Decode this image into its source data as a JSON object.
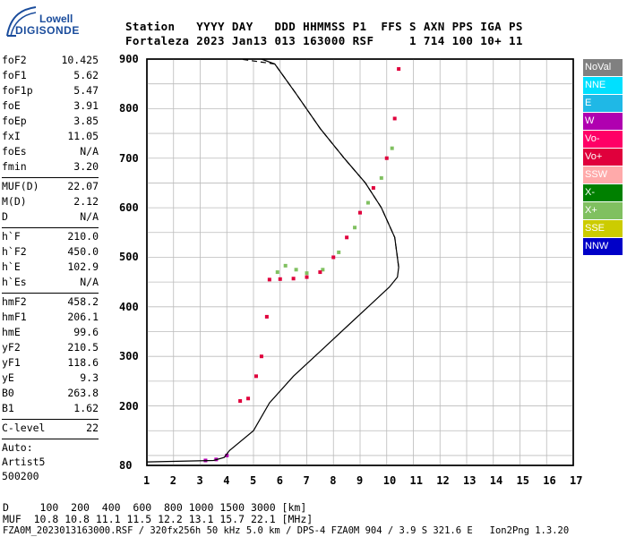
{
  "logo": {
    "line1": "Lowell",
    "line2": "DIGISONDE"
  },
  "header": {
    "labels": "Station   YYYY DAY   DDD HHMMSS P1  FFS S AXN PPS IGA PS",
    "values": "Fortaleza 2023 Jan13 013 163000 RSF     1 714 100 10+ 11"
  },
  "params_group1": [
    {
      "k": "foF2",
      "v": "10.425"
    },
    {
      "k": "foF1",
      "v": "5.62"
    },
    {
      "k": "foF1p",
      "v": "5.47"
    },
    {
      "k": "foE",
      "v": "3.91"
    },
    {
      "k": "foEp",
      "v": "3.85"
    },
    {
      "k": "fxI",
      "v": "11.05"
    },
    {
      "k": "foEs",
      "v": "N/A"
    },
    {
      "k": "fmin",
      "v": "3.20"
    }
  ],
  "params_group2": [
    {
      "k": "MUF(D)",
      "v": "22.07"
    },
    {
      "k": "M(D)",
      "v": "2.12"
    },
    {
      "k": "D",
      "v": "N/A"
    }
  ],
  "params_group3": [
    {
      "k": "h`F",
      "v": "210.0"
    },
    {
      "k": "h`F2",
      "v": "450.0"
    },
    {
      "k": "h`E",
      "v": "102.9"
    },
    {
      "k": "h`Es",
      "v": "N/A"
    }
  ],
  "params_group4": [
    {
      "k": "hmF2",
      "v": "458.2"
    },
    {
      "k": "hmF1",
      "v": "206.1"
    },
    {
      "k": "hmE",
      "v": "99.6"
    },
    {
      "k": "yF2",
      "v": "210.5"
    },
    {
      "k": "yF1",
      "v": "118.6"
    },
    {
      "k": "yE",
      "v": "9.3"
    },
    {
      "k": "B0",
      "v": "263.8"
    },
    {
      "k": "B1",
      "v": "1.62"
    }
  ],
  "c_level": {
    "k": "C-level",
    "v": "22"
  },
  "auto": [
    "Auto:",
    "Artist5",
    "500200"
  ],
  "legend": [
    {
      "label": "NoVal",
      "color": "#808080"
    },
    {
      "label": "NNE",
      "color": "#00e0ff"
    },
    {
      "label": "E",
      "color": "#1fb8e6"
    },
    {
      "label": "W",
      "color": "#b000b0"
    },
    {
      "label": "Vo-",
      "color": "#ff0066"
    },
    {
      "label": "Vo+",
      "color": "#e0003c"
    },
    {
      "label": "SSW",
      "color": "#ffaaaa"
    },
    {
      "label": "X-",
      "color": "#008000"
    },
    {
      "label": "X+",
      "color": "#80c060"
    },
    {
      "label": "SSE",
      "color": "#cccc00"
    },
    {
      "label": "NNW",
      "color": "#0000c8"
    }
  ],
  "footer": {
    "line1": "D     100  200  400  600  800 1000 1500 3000 [km]",
    "line2": "MUF  10.8 10.8 11.1 11.5 12.2 13.1 15.7 22.1 [MHz]",
    "line3": "FZA0M_2023013163000.RSF / 320fx256h 50 kHz 5.0 km / DPS-4 FZA0M 904 / 3.9 S 321.6 E   Ion2Png 1.3.20"
  },
  "chart_data": {
    "type": "scatter",
    "x_ticks": [
      "1",
      "2",
      "3",
      "4",
      "5",
      "6",
      "7",
      "8",
      "9",
      "10",
      "11",
      "12",
      "13",
      "14",
      "15",
      "16",
      "17"
    ],
    "y_ticks": [
      "900",
      "800",
      "700",
      "600",
      "500",
      "400",
      "300",
      "200",
      "80"
    ],
    "xlim": [
      1,
      17
    ],
    "ylim": [
      80,
      900
    ],
    "grid": true,
    "legend_position": "right",
    "trace_o": [
      [
        4.5,
        210
      ],
      [
        4.8,
        215
      ],
      [
        5.1,
        260
      ],
      [
        5.3,
        300
      ],
      [
        5.5,
        380
      ],
      [
        5.6,
        455
      ],
      [
        6.0,
        456
      ],
      [
        6.5,
        457
      ],
      [
        7.0,
        460
      ],
      [
        7.5,
        470
      ],
      [
        8.0,
        500
      ],
      [
        8.5,
        540
      ],
      [
        9.0,
        590
      ],
      [
        9.5,
        640
      ],
      [
        10.0,
        700
      ],
      [
        10.3,
        780
      ],
      [
        10.45,
        880
      ]
    ],
    "trace_x": [
      [
        5.9,
        470
      ],
      [
        6.2,
        483
      ],
      [
        6.6,
        475
      ],
      [
        7.0,
        468
      ],
      [
        7.6,
        475
      ],
      [
        8.2,
        510
      ],
      [
        8.8,
        560
      ],
      [
        9.3,
        610
      ],
      [
        9.8,
        660
      ],
      [
        10.2,
        720
      ]
    ],
    "trace_e": [
      [
        3.2,
        90
      ],
      [
        3.6,
        92
      ],
      [
        4.0,
        100
      ]
    ],
    "profile": [
      [
        1.0,
        87
      ],
      [
        3.5,
        90
      ],
      [
        3.9,
        96
      ],
      [
        4.1,
        110
      ],
      [
        5.0,
        150
      ],
      [
        5.6,
        206
      ],
      [
        6.5,
        260
      ],
      [
        7.5,
        310
      ],
      [
        8.5,
        360
      ],
      [
        9.5,
        410
      ],
      [
        10.1,
        440
      ],
      [
        10.4,
        460
      ],
      [
        10.45,
        480
      ]
    ],
    "profile_upper": [
      [
        10.45,
        480
      ],
      [
        10.3,
        540
      ],
      [
        9.8,
        600
      ],
      [
        9.2,
        650
      ],
      [
        8.4,
        700
      ],
      [
        7.5,
        760
      ],
      [
        6.6,
        830
      ],
      [
        5.8,
        890
      ],
      [
        5.3,
        900
      ]
    ],
    "extrapolated": [
      [
        10.45,
        480
      ],
      [
        10.3,
        540
      ],
      [
        9.8,
        600
      ],
      [
        9.2,
        650
      ],
      [
        8.4,
        700
      ],
      [
        7.5,
        760
      ],
      [
        6.6,
        830
      ],
      [
        5.8,
        890
      ],
      [
        4.5,
        900
      ]
    ]
  }
}
